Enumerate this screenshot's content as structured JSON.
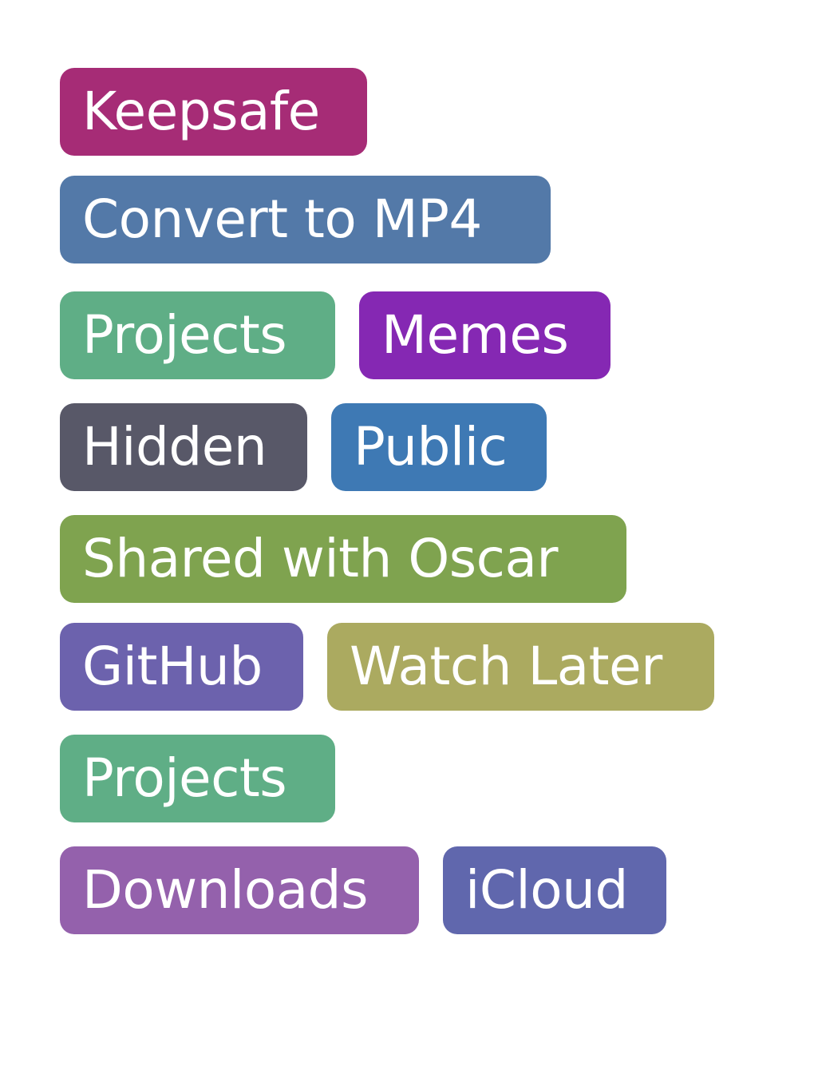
{
  "tags": [
    {
      "label": "Keepsafe",
      "color": "#A62C76"
    },
    {
      "label": "Convert to MP4",
      "color": "#5379A8"
    },
    {
      "label": "Projects",
      "color": "#5FAE86"
    },
    {
      "label": "Memes",
      "color": "#8528B3"
    },
    {
      "label": "Hidden",
      "color": "#585868"
    },
    {
      "label": "Public",
      "color": "#3E79B4"
    },
    {
      "label": "Shared with Oscar",
      "color": "#7FA34F"
    },
    {
      "label": "GitHub",
      "color": "#6C62AD"
    },
    {
      "label": "Watch Later",
      "color": "#ABAA60"
    },
    {
      "label": "Projects",
      "color": "#5FAE86"
    },
    {
      "label": "Downloads",
      "color": "#9461AC"
    },
    {
      "label": "iCloud",
      "color": "#6067AD"
    }
  ]
}
